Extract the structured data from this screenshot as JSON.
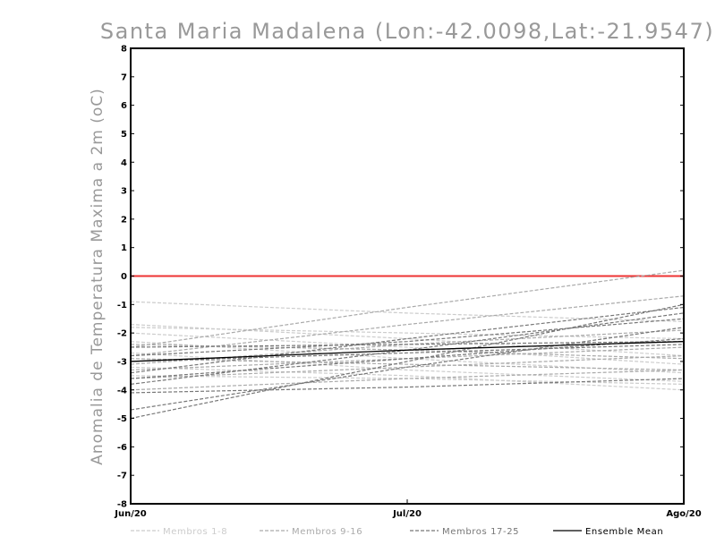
{
  "chart_data": {
    "type": "line",
    "title": "Santa Maria Madalena (Lon:-42.0098,Lat:-21.9547)",
    "xlabel": "",
    "ylabel": "Anomalia de Temperatura Maxima a 2m (oC)",
    "categories": [
      "Jun/20",
      "Jul/20",
      "Ago/20"
    ],
    "y_ticks": [
      "8",
      "7",
      "6",
      "5",
      "4",
      "3",
      "2",
      "1",
      "0",
      "-1",
      "-2",
      "-3",
      "-4",
      "-5",
      "-6",
      "-7",
      "-8"
    ],
    "ylim": [
      -8,
      8
    ],
    "reference_line": {
      "y": 0,
      "color": "#ee3333"
    },
    "groups": [
      {
        "name": "Membros 1-8",
        "color": "#cccccc",
        "series": [
          [
            -0.9,
            -1.3,
            -1.6
          ],
          [
            -1.7,
            -2.2,
            -2.8
          ],
          [
            -1.8,
            -2.0,
            -2.2
          ],
          [
            -2.0,
            -2.5,
            -3.1
          ],
          [
            -2.3,
            -2.9,
            -3.4
          ],
          [
            -2.7,
            -3.3,
            -3.7
          ],
          [
            -3.2,
            -3.5,
            -4.0
          ],
          [
            -3.5,
            -3.6,
            -3.8
          ]
        ]
      },
      {
        "name": "Membros 9-16",
        "color": "#aaaaaa",
        "series": [
          [
            -2.5,
            -1.1,
            0.2
          ],
          [
            -2.8,
            -1.7,
            -0.7
          ],
          [
            -3.1,
            -2.4,
            -1.9
          ],
          [
            -3.3,
            -2.9,
            -2.5
          ],
          [
            -2.4,
            -2.6,
            -2.9
          ],
          [
            -2.9,
            -3.1,
            -3.3
          ],
          [
            -3.6,
            -3.2,
            -2.8
          ],
          [
            -4.0,
            -3.6,
            -3.3
          ]
        ]
      },
      {
        "name": "Membros 17-25",
        "color": "#777777",
        "series": [
          [
            -5.0,
            -3.0,
            -1.0
          ],
          [
            -4.7,
            -3.2,
            -1.8
          ],
          [
            -4.1,
            -3.9,
            -3.6
          ],
          [
            -3.8,
            -2.6,
            -1.3
          ],
          [
            -3.6,
            -2.9,
            -2.2
          ],
          [
            -3.4,
            -2.2,
            -1.1
          ],
          [
            -3.0,
            -2.7,
            -2.4
          ],
          [
            -2.8,
            -2.3,
            -1.5
          ],
          [
            -2.5,
            -2.4,
            -2.3
          ]
        ]
      }
    ],
    "mean": {
      "name": "Ensemble Mean",
      "color": "#000000",
      "values": [
        -3.0,
        -2.6,
        -2.3
      ]
    },
    "legend_position": "bottom"
  }
}
